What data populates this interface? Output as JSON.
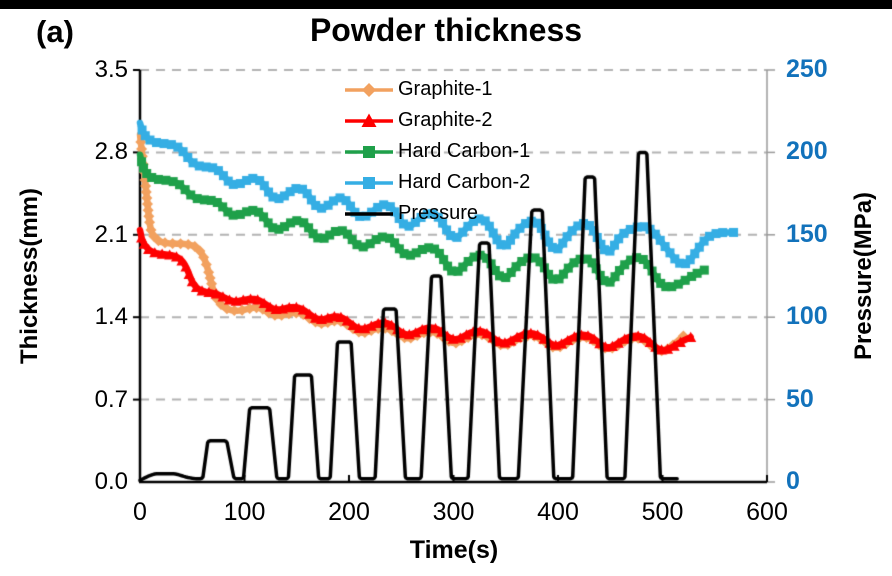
{
  "figure": {
    "panel_label": "(a)",
    "title": "Powder thickness"
  },
  "chart_data": {
    "type": "line",
    "title": "Powder thickness",
    "x_axis": {
      "label": "Time(s)",
      "range": [
        0,
        600
      ],
      "ticks": [
        "0",
        "100",
        "200",
        "300",
        "400",
        "500",
        "600"
      ]
    },
    "y_axis_left": {
      "label": "Thickness(mm)",
      "range": [
        0,
        3.5
      ],
      "ticks": [
        "3.5",
        "2.8",
        "2.1",
        "1.4",
        "0.7",
        "0.0"
      ],
      "color": "#000000"
    },
    "y_axis_right": {
      "label": "Pressure(MPa)",
      "range": [
        0,
        250
      ],
      "ticks": [
        "250",
        "200",
        "150",
        "100",
        "50",
        "0"
      ],
      "color": "#1272BB"
    },
    "grid": {
      "horizontal_dashed": true,
      "color": "#b3b3b3"
    },
    "legend_position": "inside-top-center",
    "series": [
      {
        "name": "Graphite-1",
        "color": "#F2A15F",
        "marker": "diamond",
        "axis": "left",
        "points": [
          [
            0,
            2.95
          ],
          [
            5,
            2.55
          ],
          [
            10,
            2.12
          ],
          [
            14,
            2.03
          ],
          [
            56,
            2.02
          ],
          [
            64,
            1.85
          ],
          [
            72,
            1.55
          ],
          [
            80,
            1.46
          ],
          [
            92,
            1.44
          ],
          [
            104,
            1.46
          ],
          [
            112,
            1.52
          ],
          [
            130,
            1.38
          ],
          [
            142,
            1.44
          ],
          [
            154,
            1.46
          ],
          [
            172,
            1.31
          ],
          [
            184,
            1.38
          ],
          [
            193,
            1.39
          ],
          [
            212,
            1.23
          ],
          [
            224,
            1.31
          ],
          [
            237,
            1.33
          ],
          [
            256,
            1.18
          ],
          [
            268,
            1.27
          ],
          [
            282,
            1.3
          ],
          [
            301,
            1.14
          ],
          [
            313,
            1.24
          ],
          [
            328,
            1.28
          ],
          [
            348,
            1.12
          ],
          [
            360,
            1.22
          ],
          [
            378,
            1.27
          ],
          [
            398,
            1.1
          ],
          [
            410,
            1.2
          ],
          [
            428,
            1.26
          ],
          [
            448,
            1.09
          ],
          [
            460,
            1.19
          ],
          [
            479,
            1.25
          ],
          [
            499,
            1.07
          ],
          [
            512,
            1.18
          ],
          [
            520,
            1.24
          ]
        ]
      },
      {
        "name": "Graphite-2",
        "color": "#FE0000",
        "marker": "triangle",
        "axis": "left",
        "points": [
          [
            0,
            2.14
          ],
          [
            3,
            2.0
          ],
          [
            8,
            1.94
          ],
          [
            38,
            1.93
          ],
          [
            44,
            1.85
          ],
          [
            50,
            1.68
          ],
          [
            56,
            1.6
          ],
          [
            64,
            1.61
          ],
          [
            72,
            1.63
          ],
          [
            90,
            1.5
          ],
          [
            100,
            1.56
          ],
          [
            112,
            1.58
          ],
          [
            130,
            1.43
          ],
          [
            142,
            1.5
          ],
          [
            154,
            1.5
          ],
          [
            172,
            1.34
          ],
          [
            184,
            1.43
          ],
          [
            193,
            1.42
          ],
          [
            212,
            1.26
          ],
          [
            224,
            1.35
          ],
          [
            237,
            1.38
          ],
          [
            256,
            1.21
          ],
          [
            268,
            1.3
          ],
          [
            282,
            1.34
          ],
          [
            301,
            1.17
          ],
          [
            313,
            1.27
          ],
          [
            328,
            1.31
          ],
          [
            348,
            1.14
          ],
          [
            360,
            1.24
          ],
          [
            378,
            1.29
          ],
          [
            398,
            1.12
          ],
          [
            410,
            1.22
          ],
          [
            428,
            1.28
          ],
          [
            448,
            1.1
          ],
          [
            460,
            1.21
          ],
          [
            479,
            1.27
          ],
          [
            500,
            1.08
          ],
          [
            514,
            1.18
          ],
          [
            527,
            1.23
          ]
        ]
      },
      {
        "name": "Hard Carbon-1",
        "color": "#1FA04A",
        "marker": "square",
        "axis": "left",
        "points": [
          [
            0,
            2.78
          ],
          [
            4,
            2.62
          ],
          [
            8,
            2.57
          ],
          [
            38,
            2.56
          ],
          [
            46,
            2.44
          ],
          [
            54,
            2.38
          ],
          [
            64,
            2.39
          ],
          [
            72,
            2.42
          ],
          [
            90,
            2.22
          ],
          [
            100,
            2.3
          ],
          [
            112,
            2.34
          ],
          [
            130,
            2.1
          ],
          [
            142,
            2.2
          ],
          [
            154,
            2.26
          ],
          [
            172,
            2.02
          ],
          [
            184,
            2.12
          ],
          [
            193,
            2.18
          ],
          [
            212,
            1.95
          ],
          [
            224,
            2.06
          ],
          [
            237,
            2.12
          ],
          [
            256,
            1.88
          ],
          [
            268,
            1.98
          ],
          [
            282,
            2.02
          ],
          [
            301,
            1.73
          ],
          [
            313,
            1.88
          ],
          [
            328,
            1.97
          ],
          [
            348,
            1.68
          ],
          [
            360,
            1.85
          ],
          [
            378,
            1.95
          ],
          [
            398,
            1.66
          ],
          [
            410,
            1.84
          ],
          [
            428,
            1.94
          ],
          [
            448,
            1.64
          ],
          [
            460,
            1.83
          ],
          [
            479,
            1.95
          ],
          [
            502,
            1.62
          ],
          [
            520,
            1.7
          ],
          [
            535,
            1.79
          ],
          [
            540,
            1.8
          ]
        ]
      },
      {
        "name": "Hard Carbon-2",
        "color": "#35AEE4",
        "marker": "square",
        "axis": "left",
        "points": [
          [
            0,
            3.05
          ],
          [
            4,
            2.92
          ],
          [
            8,
            2.88
          ],
          [
            38,
            2.87
          ],
          [
            46,
            2.74
          ],
          [
            54,
            2.66
          ],
          [
            64,
            2.67
          ],
          [
            72,
            2.7
          ],
          [
            90,
            2.48
          ],
          [
            100,
            2.56
          ],
          [
            112,
            2.62
          ],
          [
            130,
            2.36
          ],
          [
            142,
            2.46
          ],
          [
            154,
            2.54
          ],
          [
            172,
            2.28
          ],
          [
            184,
            2.38
          ],
          [
            193,
            2.46
          ],
          [
            212,
            2.2
          ],
          [
            224,
            2.32
          ],
          [
            237,
            2.4
          ],
          [
            256,
            2.12
          ],
          [
            268,
            2.26
          ],
          [
            282,
            2.32
          ],
          [
            301,
            2.02
          ],
          [
            313,
            2.18
          ],
          [
            328,
            2.28
          ],
          [
            348,
            1.95
          ],
          [
            360,
            2.14
          ],
          [
            378,
            2.26
          ],
          [
            398,
            1.92
          ],
          [
            410,
            2.12
          ],
          [
            428,
            2.24
          ],
          [
            448,
            1.9
          ],
          [
            460,
            2.12
          ],
          [
            485,
            2.2
          ],
          [
            520,
            1.8
          ],
          [
            545,
            2.12
          ],
          [
            568,
            2.12
          ]
        ]
      },
      {
        "name": "Pressure",
        "color": "#000000",
        "marker": "none",
        "axis": "right",
        "points": [
          [
            0,
            1
          ],
          [
            6,
            3
          ],
          [
            14,
            5
          ],
          [
            34,
            5
          ],
          [
            44,
            3
          ],
          [
            52,
            2
          ],
          [
            60,
            2
          ],
          [
            65,
            25
          ],
          [
            83,
            25
          ],
          [
            90,
            2
          ],
          [
            99,
            2
          ],
          [
            105,
            45
          ],
          [
            124,
            45
          ],
          [
            131,
            2
          ],
          [
            142,
            2
          ],
          [
            148,
            65
          ],
          [
            164,
            65
          ],
          [
            171,
            2
          ],
          [
            182,
            2
          ],
          [
            189,
            85
          ],
          [
            202,
            85
          ],
          [
            210,
            2
          ],
          [
            225,
            2
          ],
          [
            233,
            105
          ],
          [
            245,
            105
          ],
          [
            254,
            2
          ],
          [
            269,
            2
          ],
          [
            279,
            125
          ],
          [
            288,
            125
          ],
          [
            298,
            2
          ],
          [
            314,
            2
          ],
          [
            325,
            145
          ],
          [
            334,
            145
          ],
          [
            344,
            2
          ],
          [
            362,
            2
          ],
          [
            375,
            165
          ],
          [
            385,
            165
          ],
          [
            396,
            2
          ],
          [
            414,
            2
          ],
          [
            426,
            185
          ],
          [
            435,
            185
          ],
          [
            447,
            2
          ],
          [
            464,
            2
          ],
          [
            477,
            200
          ],
          [
            485,
            200
          ],
          [
            498,
            2
          ],
          [
            514,
            2
          ]
        ]
      }
    ]
  }
}
